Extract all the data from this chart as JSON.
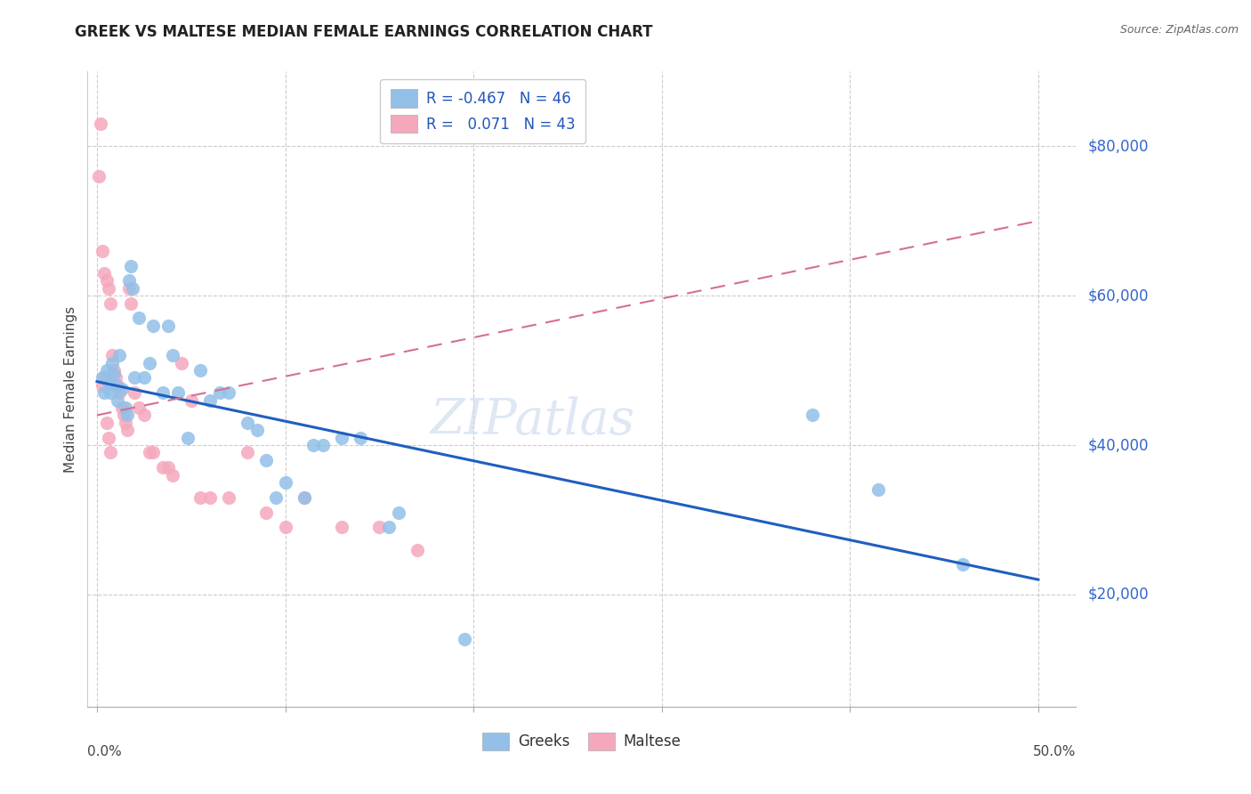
{
  "title": "GREEK VS MALTESE MEDIAN FEMALE EARNINGS CORRELATION CHART",
  "source": "Source: ZipAtlas.com",
  "ylabel": "Median Female Earnings",
  "watermark": "ZIPatlas",
  "legend": {
    "greek_R": "-0.467",
    "greek_N": "46",
    "maltese_R": "0.071",
    "maltese_N": "43"
  },
  "yticks": [
    20000,
    40000,
    60000,
    80000
  ],
  "ytick_labels": [
    "$20,000",
    "$40,000",
    "$60,000",
    "$80,000"
  ],
  "xlim": [
    -0.005,
    0.52
  ],
  "ylim": [
    5000,
    90000
  ],
  "greek_color": "#92c0e8",
  "maltese_color": "#f5a8bc",
  "greek_line_color": "#1f5fbf",
  "maltese_line_color": "#d47090",
  "background_color": "#ffffff",
  "greek_scatter": [
    [
      0.003,
      49000
    ],
    [
      0.004,
      47000
    ],
    [
      0.005,
      50000
    ],
    [
      0.006,
      48500
    ],
    [
      0.007,
      47000
    ],
    [
      0.008,
      51000
    ],
    [
      0.009,
      49500
    ],
    [
      0.01,
      48000
    ],
    [
      0.011,
      46000
    ],
    [
      0.012,
      52000
    ],
    [
      0.013,
      47500
    ],
    [
      0.015,
      45000
    ],
    [
      0.016,
      44000
    ],
    [
      0.017,
      62000
    ],
    [
      0.018,
      64000
    ],
    [
      0.019,
      61000
    ],
    [
      0.02,
      49000
    ],
    [
      0.022,
      57000
    ],
    [
      0.025,
      49000
    ],
    [
      0.028,
      51000
    ],
    [
      0.03,
      56000
    ],
    [
      0.035,
      47000
    ],
    [
      0.038,
      56000
    ],
    [
      0.04,
      52000
    ],
    [
      0.043,
      47000
    ],
    [
      0.048,
      41000
    ],
    [
      0.055,
      50000
    ],
    [
      0.06,
      46000
    ],
    [
      0.065,
      47000
    ],
    [
      0.07,
      47000
    ],
    [
      0.08,
      43000
    ],
    [
      0.085,
      42000
    ],
    [
      0.09,
      38000
    ],
    [
      0.095,
      33000
    ],
    [
      0.1,
      35000
    ],
    [
      0.11,
      33000
    ],
    [
      0.115,
      40000
    ],
    [
      0.12,
      40000
    ],
    [
      0.13,
      41000
    ],
    [
      0.14,
      41000
    ],
    [
      0.155,
      29000
    ],
    [
      0.16,
      31000
    ],
    [
      0.195,
      14000
    ],
    [
      0.38,
      44000
    ],
    [
      0.415,
      34000
    ],
    [
      0.46,
      24000
    ]
  ],
  "maltese_scatter": [
    [
      0.001,
      76000
    ],
    [
      0.002,
      83000
    ],
    [
      0.003,
      66000
    ],
    [
      0.004,
      63000
    ],
    [
      0.005,
      62000
    ],
    [
      0.006,
      61000
    ],
    [
      0.007,
      59000
    ],
    [
      0.008,
      52000
    ],
    [
      0.009,
      50000
    ],
    [
      0.01,
      49000
    ],
    [
      0.011,
      48000
    ],
    [
      0.012,
      47000
    ],
    [
      0.013,
      45000
    ],
    [
      0.014,
      44000
    ],
    [
      0.015,
      43000
    ],
    [
      0.016,
      42000
    ],
    [
      0.017,
      61000
    ],
    [
      0.018,
      59000
    ],
    [
      0.02,
      47000
    ],
    [
      0.022,
      45000
    ],
    [
      0.025,
      44000
    ],
    [
      0.028,
      39000
    ],
    [
      0.03,
      39000
    ],
    [
      0.035,
      37000
    ],
    [
      0.038,
      37000
    ],
    [
      0.04,
      36000
    ],
    [
      0.045,
      51000
    ],
    [
      0.05,
      46000
    ],
    [
      0.055,
      33000
    ],
    [
      0.06,
      33000
    ],
    [
      0.07,
      33000
    ],
    [
      0.08,
      39000
    ],
    [
      0.09,
      31000
    ],
    [
      0.1,
      29000
    ],
    [
      0.11,
      33000
    ],
    [
      0.13,
      29000
    ],
    [
      0.15,
      29000
    ],
    [
      0.17,
      26000
    ],
    [
      0.003,
      48000
    ],
    [
      0.004,
      49000
    ],
    [
      0.005,
      43000
    ],
    [
      0.006,
      41000
    ],
    [
      0.007,
      39000
    ]
  ],
  "greek_line_x": [
    0.0,
    0.5
  ],
  "greek_line_y": [
    48500,
    22000
  ],
  "maltese_line_x": [
    0.0,
    0.5
  ],
  "maltese_line_y": [
    44000,
    70000
  ]
}
